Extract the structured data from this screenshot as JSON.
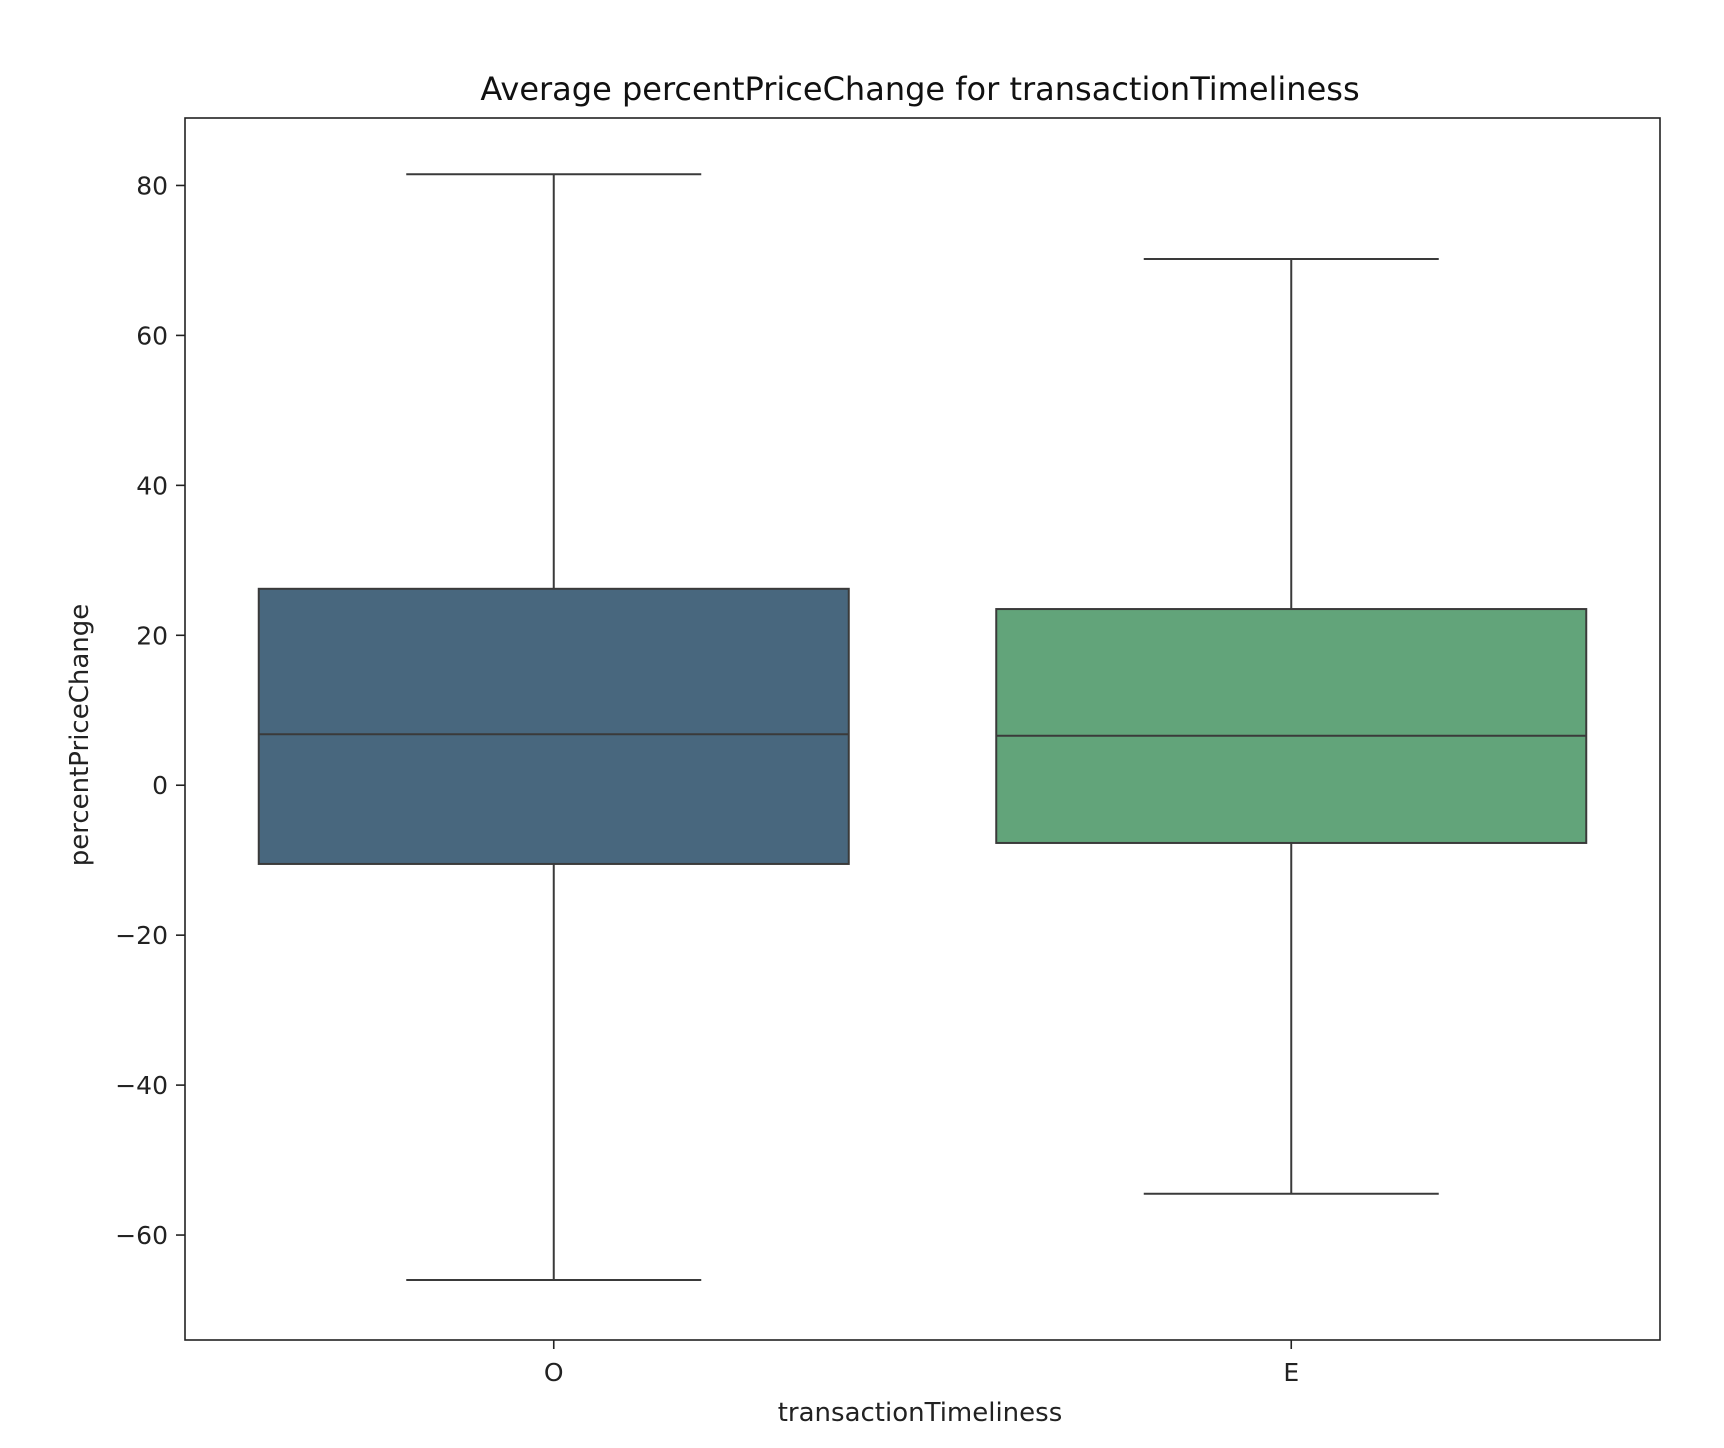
{
  "chart_data": {
    "type": "box",
    "title": "Average percentPriceChange for transactionTimeliness",
    "xlabel": "transactionTimeliness",
    "ylabel": "percentPriceChange",
    "ylim": [
      -74,
      89
    ],
    "y_ticks": [
      {
        "value": 80,
        "label": "80"
      },
      {
        "value": 60,
        "label": "60"
      },
      {
        "value": 40,
        "label": "40"
      },
      {
        "value": 20,
        "label": "20"
      },
      {
        "value": 0,
        "label": "0"
      },
      {
        "value": -20,
        "label": "−20"
      },
      {
        "value": -40,
        "label": "−40"
      },
      {
        "value": -60,
        "label": "−60"
      }
    ],
    "categories": [
      "O",
      "E"
    ],
    "boxes": [
      {
        "category": "O",
        "whisker_low": -66,
        "q1": -10.5,
        "median": 6.8,
        "q3": 26.2,
        "whisker_high": 81.5,
        "color": "#48677e"
      },
      {
        "category": "E",
        "whisker_low": -54.5,
        "q1": -7.7,
        "median": 6.6,
        "q3": 23.5,
        "whisker_high": 70.2,
        "color": "#62a47a"
      }
    ],
    "grid": false,
    "legend": "none"
  }
}
